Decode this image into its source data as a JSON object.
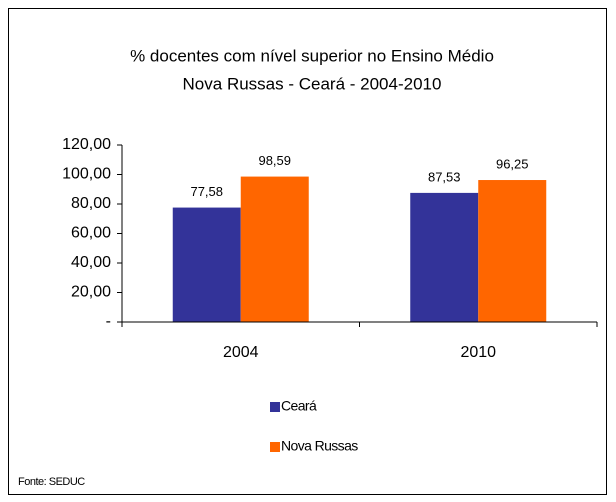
{
  "chart_data": {
    "type": "bar",
    "title": "% docentes com nível  superior no Ensino Médio",
    "subtitle": "Nova Russas -  Ceará - 2004-2010",
    "categories": [
      "2004",
      "2010"
    ],
    "series": [
      {
        "name": "Ceará",
        "color": "#333399",
        "values": [
          77.58,
          87.53
        ],
        "value_labels": [
          "77,58",
          "87,53"
        ]
      },
      {
        "name": "Nova Russas",
        "color": "#ff6600",
        "values": [
          98.59,
          96.25
        ],
        "value_labels": [
          "98,59",
          "96,25"
        ]
      }
    ],
    "ylim": [
      0,
      120
    ],
    "yticks": [
      {
        "value": 0,
        "label": "-"
      },
      {
        "value": 20,
        "label": "20,00"
      },
      {
        "value": 40,
        "label": "40,00"
      },
      {
        "value": 60,
        "label": "60,00"
      },
      {
        "value": 80,
        "label": "80,00"
      },
      {
        "value": 100,
        "label": "100,00"
      },
      {
        "value": 120,
        "label": "120,00"
      }
    ],
    "legend": "bottom",
    "source": "Fonte: SEDUC"
  }
}
